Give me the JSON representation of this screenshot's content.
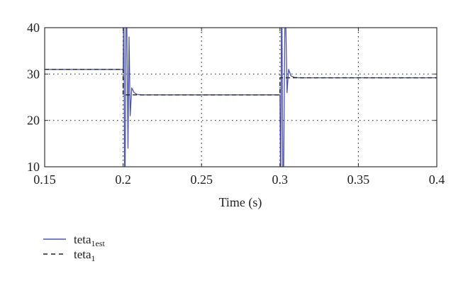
{
  "chart_data": {
    "type": "line",
    "title": "",
    "xlabel": "Time (s)",
    "ylabel": "",
    "xlim": [
      0.15,
      0.4
    ],
    "ylim": [
      10,
      40
    ],
    "xticks": [
      "0.15",
      "0.2",
      "0.25",
      "0.3",
      "0.35",
      "0.4"
    ],
    "yticks": [
      "10",
      "20",
      "30",
      "40"
    ],
    "grid": true,
    "legend_position": "bottom-left, below plot",
    "series": [
      {
        "name": "teta1est",
        "label_main": "teta",
        "label_sub": "1est",
        "color": "#4b55b0",
        "style": "solid",
        "x": [
          0.15,
          0.2,
          0.2003,
          0.2006,
          0.2009,
          0.2013,
          0.2018,
          0.2024,
          0.2031,
          0.2038,
          0.2045,
          0.2055,
          0.207,
          0.209,
          0.212,
          0.215,
          0.2998,
          0.3,
          0.3003,
          0.3006,
          0.3009,
          0.3013,
          0.3018,
          0.3024,
          0.3031,
          0.3038,
          0.3045,
          0.3055,
          0.307,
          0.309,
          0.312,
          0.4
        ],
        "y": [
          31,
          31,
          40,
          40,
          10,
          10,
          40,
          40,
          14,
          38,
          21,
          27,
          26,
          25.6,
          25.5,
          25.5,
          25.5,
          25.5,
          10,
          10,
          40,
          40,
          10,
          10,
          40,
          40,
          26,
          31,
          29.6,
          29.3,
          29.2,
          29.2
        ]
      },
      {
        "name": "teta1",
        "label_main": "teta",
        "label_sub": "1",
        "color": "#222222",
        "style": "dashed",
        "x": [
          0.15,
          0.2,
          0.2,
          0.3,
          0.3,
          0.4
        ],
        "y": [
          31,
          31,
          25.5,
          25.5,
          29.2,
          29.2
        ]
      }
    ]
  }
}
